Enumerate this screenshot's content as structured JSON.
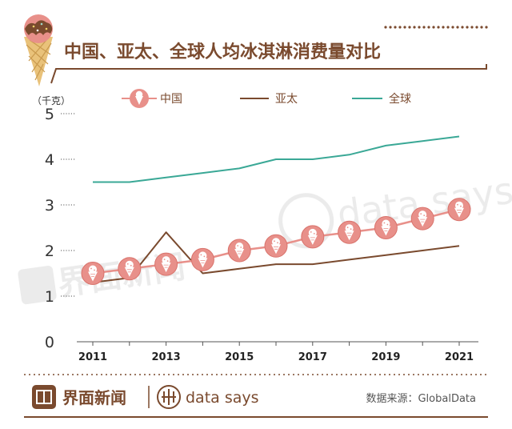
{
  "header": {
    "title": "中国、亚太、全球人均冰淇淋消费量对比",
    "unit_label": "（千克）"
  },
  "legend": {
    "items": [
      "中国",
      "亚太",
      "全球"
    ]
  },
  "chart_data": {
    "type": "line",
    "title": "中国、亚太、全球人均冰淇淋消费量对比",
    "ylabel": "千克",
    "xlabel": "",
    "x": [
      2011,
      2012,
      2013,
      2014,
      2015,
      2016,
      2017,
      2018,
      2019,
      2020,
      2021
    ],
    "x_tick_labels": [
      "2011",
      "2013",
      "2015",
      "2017",
      "2019",
      "2021"
    ],
    "y_tick_labels": [
      "0",
      "1",
      "2",
      "3",
      "4",
      "5"
    ],
    "ylim": [
      0,
      5
    ],
    "grid": false,
    "series": [
      {
        "name": "全球",
        "color": "#3aa896",
        "marker": "none",
        "values": [
          3.5,
          3.5,
          3.6,
          3.7,
          3.8,
          4.0,
          4.0,
          4.1,
          4.3,
          4.4,
          4.5
        ]
      },
      {
        "name": "亚太",
        "color": "#7a4a2e",
        "marker": "none",
        "values": [
          1.3,
          1.4,
          2.4,
          1.5,
          1.6,
          1.7,
          1.7,
          1.8,
          1.9,
          2.0,
          2.1
        ]
      },
      {
        "name": "中国",
        "color": "#e8908a",
        "marker": "ice-cream",
        "values": [
          1.5,
          1.6,
          1.7,
          1.8,
          2.0,
          2.1,
          2.3,
          2.4,
          2.5,
          2.7,
          2.9
        ]
      }
    ]
  },
  "footer": {
    "brand": "界面新闻",
    "brand_mark": "data says",
    "source": "数据来源：GlobalData"
  },
  "watermark": {
    "brand": "界面新闻",
    "brand_mark": "data says"
  },
  "colors": {
    "brown": "#7a4a2e",
    "teal": "#3aa896",
    "pink": "#e8908a",
    "pink_dark": "#d9736c",
    "text_dark": "#333333"
  }
}
